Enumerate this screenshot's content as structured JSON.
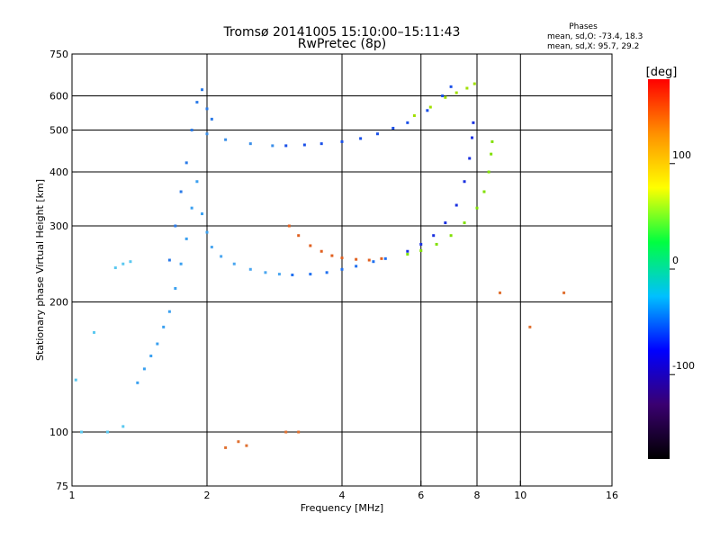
{
  "chart_data": {
    "type": "scatter",
    "title": "Tromsø 20141005 15:10:00–15:11:43",
    "subtitle": "RwPretec (8p)",
    "xlabel": "Frequency [MHz]",
    "ylabel": "Stationary phase Virtual Height [km]",
    "x_scale": "log",
    "y_scale": "log",
    "xlim": [
      1,
      16
    ],
    "ylim": [
      75,
      750
    ],
    "x_ticks": [
      1,
      2,
      4,
      6,
      8,
      10,
      16
    ],
    "y_ticks": [
      75,
      100,
      200,
      300,
      400,
      500,
      600,
      750
    ],
    "x_grid": [
      2,
      4,
      6,
      8,
      10
    ],
    "y_grid": [
      100,
      200,
      300,
      400,
      500,
      600
    ],
    "grid": true,
    "phase_stats": {
      "heading": "Phases",
      "line_o": "mean, sd,O: -73.4, 18.3",
      "line_x": "mean, sd,X:  95.7, 29.2"
    },
    "colorbar": {
      "label": "[deg]",
      "range": [
        -180,
        180
      ],
      "ticks": [
        100,
        0,
        -100
      ],
      "stops": [
        "#000000",
        "#3a0070",
        "#0000ff",
        "#00c0ff",
        "#00ff40",
        "#ffff00",
        "#ff9000",
        "#ff0000"
      ]
    },
    "series": [
      {
        "color": "#4aa6f0",
        "points": [
          [
            2.05,
            268
          ],
          [
            2.15,
            255
          ],
          [
            2.3,
            245
          ],
          [
            2.5,
            238
          ],
          [
            2.7,
            234
          ],
          [
            2.9,
            232
          ]
        ]
      },
      {
        "color": "#2070f0",
        "points": [
          [
            3.1,
            231
          ],
          [
            3.4,
            232
          ],
          [
            3.7,
            234
          ],
          [
            4.0,
            238
          ],
          [
            4.3,
            242
          ],
          [
            4.7,
            248
          ],
          [
            5.0,
            252
          ]
        ]
      },
      {
        "color": "#1a30e0",
        "points": [
          [
            5.6,
            262
          ],
          [
            6.0,
            272
          ],
          [
            6.4,
            285
          ],
          [
            6.8,
            305
          ],
          [
            7.2,
            335
          ],
          [
            7.5,
            380
          ],
          [
            7.7,
            430
          ],
          [
            7.8,
            480
          ],
          [
            7.85,
            520
          ]
        ]
      },
      {
        "color": "#e06020",
        "points": [
          [
            3.05,
            300
          ],
          [
            3.2,
            285
          ],
          [
            3.4,
            270
          ],
          [
            3.6,
            262
          ],
          [
            3.8,
            256
          ],
          [
            4.0,
            253
          ],
          [
            4.3,
            251
          ],
          [
            4.6,
            250
          ],
          [
            4.9,
            252
          ]
        ]
      },
      {
        "color": "#80e000",
        "points": [
          [
            5.6,
            258
          ],
          [
            6.0,
            263
          ],
          [
            6.5,
            272
          ],
          [
            7.0,
            285
          ],
          [
            7.5,
            305
          ],
          [
            8.0,
            330
          ],
          [
            8.3,
            360
          ],
          [
            8.5,
            400
          ],
          [
            8.6,
            440
          ],
          [
            8.65,
            470
          ]
        ]
      },
      {
        "color": "#3a8ee8",
        "points": [
          [
            2.0,
            490
          ],
          [
            2.2,
            475
          ],
          [
            2.5,
            465
          ],
          [
            2.8,
            460
          ]
        ]
      },
      {
        "color": "#1a50e8",
        "points": [
          [
            3.0,
            460
          ],
          [
            3.3,
            462
          ],
          [
            3.6,
            465
          ],
          [
            4.0,
            470
          ],
          [
            4.4,
            478
          ],
          [
            4.8,
            490
          ],
          [
            5.2,
            505
          ],
          [
            5.6,
            520
          ],
          [
            6.2,
            555
          ],
          [
            6.7,
            600
          ],
          [
            7.0,
            630
          ]
        ]
      },
      {
        "color": "#a0e000",
        "points": [
          [
            5.8,
            540
          ],
          [
            6.3,
            565
          ],
          [
            6.8,
            595
          ],
          [
            7.2,
            610
          ],
          [
            7.6,
            625
          ],
          [
            7.9,
            640
          ]
        ]
      },
      {
        "color": "#3aa0f0",
        "points": [
          [
            1.4,
            130
          ],
          [
            1.45,
            140
          ],
          [
            1.5,
            150
          ],
          [
            1.55,
            160
          ],
          [
            1.6,
            175
          ],
          [
            1.65,
            190
          ],
          [
            1.7,
            215
          ],
          [
            1.75,
            245
          ],
          [
            1.8,
            280
          ],
          [
            1.85,
            330
          ],
          [
            1.9,
            380
          ],
          [
            1.95,
            320
          ],
          [
            2.0,
            290
          ]
        ]
      },
      {
        "color": "#2a7ae8",
        "points": [
          [
            1.65,
            250
          ],
          [
            1.7,
            300
          ],
          [
            1.75,
            360
          ],
          [
            1.8,
            420
          ],
          [
            1.85,
            500
          ],
          [
            1.9,
            580
          ],
          [
            1.95,
            620
          ],
          [
            2.0,
            560
          ],
          [
            2.05,
            530
          ]
        ]
      },
      {
        "color": "#5ac8f0",
        "points": [
          [
            1.25,
            240
          ],
          [
            1.3,
            245
          ],
          [
            1.35,
            248
          ],
          [
            1.12,
            170
          ],
          [
            1.2,
            100
          ],
          [
            1.3,
            103
          ],
          [
            1.05,
            100
          ],
          [
            1.02,
            132
          ]
        ]
      },
      {
        "color": "#e07030",
        "points": [
          [
            2.2,
            92
          ],
          [
            2.35,
            95
          ],
          [
            2.45,
            93
          ],
          [
            3.0,
            100
          ],
          [
            3.2,
            100
          ],
          [
            10.5,
            175
          ],
          [
            9.0,
            210
          ],
          [
            12.5,
            210
          ]
        ]
      }
    ]
  }
}
